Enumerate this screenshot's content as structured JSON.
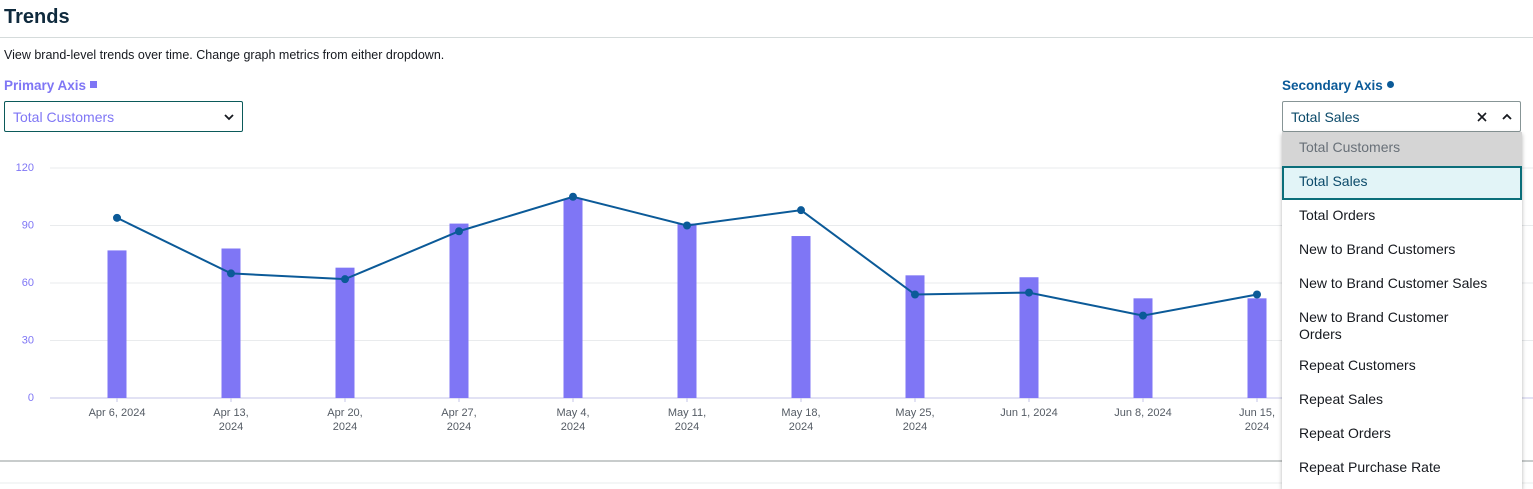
{
  "header": {
    "title": "Trends",
    "description": "View brand-level trends over time. Change graph metrics from either dropdown."
  },
  "primary_axis": {
    "label": "Primary Axis",
    "selected": "Total Customers"
  },
  "secondary_axis": {
    "label": "Secondary Axis",
    "selected": "Total Sales",
    "options": [
      "Total Customers",
      "Total Sales",
      "Total Orders",
      "New to Brand Customers",
      "New to Brand Customer Sales",
      "New to Brand Customer Orders",
      "Repeat Customers",
      "Repeat Sales",
      "Repeat Orders",
      "Repeat Purchase Rate"
    ]
  },
  "chart_data": {
    "type": "bar",
    "categories": [
      "Apr 6, 2024",
      "Apr 13, 2024",
      "Apr 20, 2024",
      "Apr 27, 2024",
      "May 4, 2024",
      "May 11, 2024",
      "May 18, 2024",
      "May 25, 2024",
      "Jun 1, 2024",
      "Jun 8, 2024",
      "Jun 15, 2024"
    ],
    "series": [
      {
        "type": "bar",
        "color": "#7f76f5",
        "values": [
          77,
          78,
          68,
          91,
          104,
          91,
          84.5,
          64,
          63,
          52,
          52
        ]
      },
      {
        "type": "line",
        "color": "#0b5a98",
        "values": [
          94,
          65,
          62,
          87,
          105,
          90,
          98,
          54,
          55,
          43,
          54
        ]
      }
    ],
    "ylim": [
      0,
      120
    ],
    "yticks": [
      0,
      30,
      60,
      90,
      120
    ],
    "grid": true
  }
}
